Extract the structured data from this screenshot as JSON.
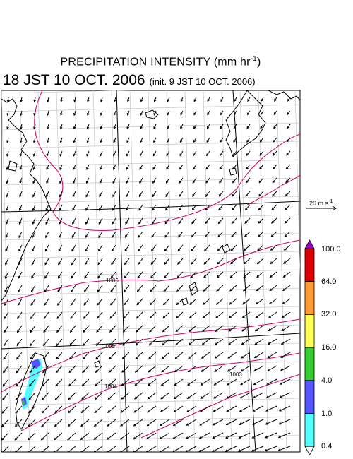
{
  "header": {
    "title_text": "PRECIPITATION INTENSITY (mm hr",
    "title_exp": "-1",
    "title_close": ")",
    "valid_time": "18 JST 10 OCT. 2006",
    "init_time": "(init. 9 JST 10 OCT. 2006)"
  },
  "wind_scale": {
    "value": "20 m s",
    "exp": "-1"
  },
  "colorbar": {
    "levels": [
      "100.0",
      "64.0",
      "32.0",
      "16.0",
      "4.0",
      "1.0",
      "0.4"
    ],
    "colors": [
      "#9900cc",
      "#dd0000",
      "#ff9933",
      "#ffff55",
      "#33cc33",
      "#5555ff",
      "#55ffff",
      "#ffffff"
    ]
  },
  "isobars": {
    "labels": [
      "1006",
      "1005",
      "1004",
      "1003"
    ],
    "color": "#cc0066"
  }
}
